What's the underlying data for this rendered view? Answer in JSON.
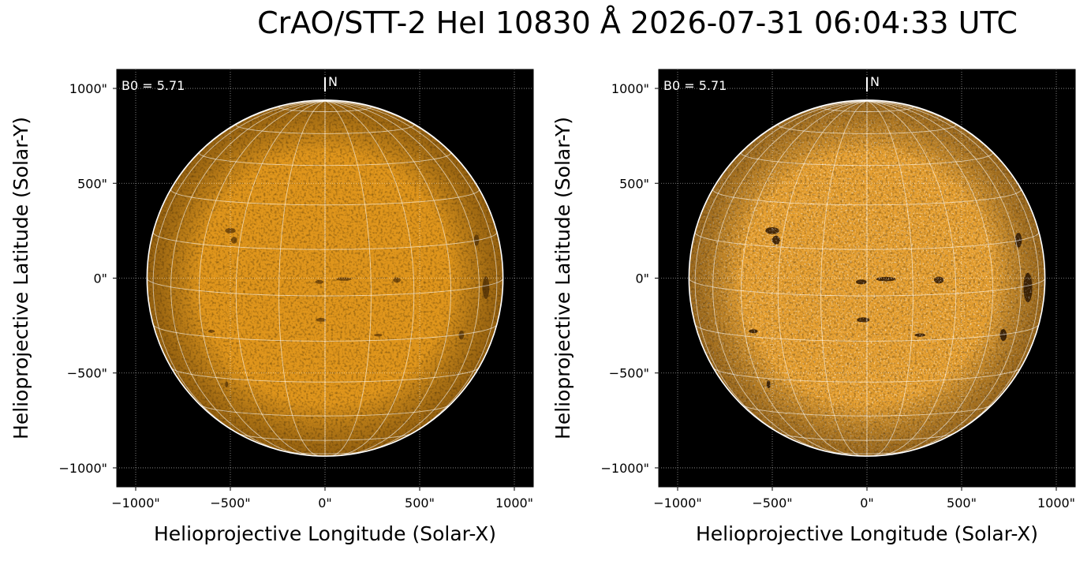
{
  "title": "CrAO/STT-2 HeI 10830 Å 2026-07-31 06:04:33 UTC",
  "chart_data": [
    {
      "type": "image",
      "xlabel": "Helioprojective Longitude (Solar-X)",
      "ylabel": "Helioprojective Latitude (Solar-Y)",
      "xlim": [
        -1100,
        1100
      ],
      "ylim": [
        -1100,
        1100
      ],
      "xticks": [
        {
          "value": -1000,
          "label": "−1000\""
        },
        {
          "value": -500,
          "label": "−500\""
        },
        {
          "value": 0,
          "label": "0\""
        },
        {
          "value": 500,
          "label": "500\""
        },
        {
          "value": 1000,
          "label": "1000\""
        }
      ],
      "yticks": [
        {
          "value": -1000,
          "label": "−1000\""
        },
        {
          "value": -500,
          "label": "−500\""
        },
        {
          "value": 0,
          "label": "0\""
        },
        {
          "value": 500,
          "label": "500\""
        },
        {
          "value": 1000,
          "label": "1000\""
        }
      ],
      "grid": true,
      "annotations": [
        "B0 = 5.71",
        "N"
      ],
      "color": "#e0961c"
    },
    {
      "type": "image",
      "xlabel": "Helioprojective Longitude (Solar-X)",
      "ylabel": "Helioprojective Latitude (Solar-Y)",
      "xlim": [
        -1100,
        1100
      ],
      "ylim": [
        -1100,
        1100
      ],
      "xticks": [
        {
          "value": -1000,
          "label": "−1000\""
        },
        {
          "value": -500,
          "label": "−500\""
        },
        {
          "value": 0,
          "label": "0\""
        },
        {
          "value": 500,
          "label": "500\""
        },
        {
          "value": 1000,
          "label": "1000\""
        }
      ],
      "yticks": [
        {
          "value": -1000,
          "label": "−1000\""
        },
        {
          "value": -500,
          "label": "−500\""
        },
        {
          "value": 0,
          "label": "0\""
        },
        {
          "value": 500,
          "label": "500\""
        },
        {
          "value": 1000,
          "label": "1000\""
        }
      ],
      "grid": true,
      "annotations": [
        "B0 = 5.71",
        "N"
      ],
      "color": "#e7a030"
    }
  ]
}
